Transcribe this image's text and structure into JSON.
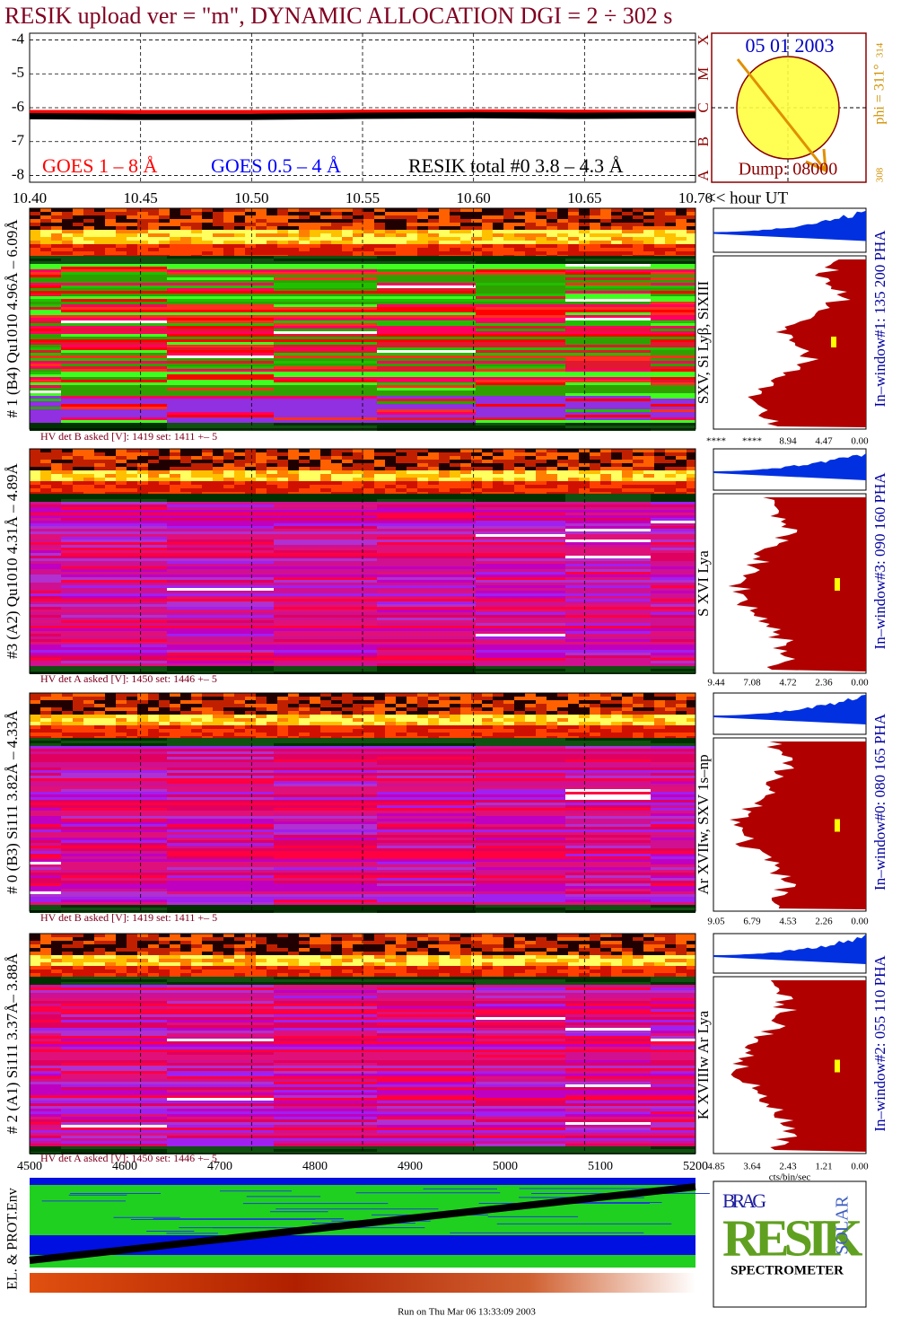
{
  "chart_data": [
    {
      "type": "line",
      "title": "RESIK upload ver = \"m\", DYNAMIC ALLOCATION  DGI =   2 ÷ 302 s",
      "x": [
        10.4,
        10.45,
        10.5,
        10.55,
        10.6,
        10.65,
        10.7
      ],
      "series": [
        {
          "name": "GOES 1 – 8 Å",
          "color": "#ff0000",
          "values": [
            -6.12,
            -6.12,
            -6.12,
            -6.11,
            -6.1,
            -6.11,
            -6.14
          ]
        },
        {
          "name": "GOES 0.5 – 4 Å",
          "color": "#0000ff",
          "values": [
            null,
            null,
            null,
            null,
            null,
            null,
            null
          ]
        },
        {
          "name": "RESIK total #0  3.8 – 4.3 Å",
          "color": "#000000",
          "values": [
            -6.25,
            -6.27,
            -6.27,
            -6.24,
            -6.22,
            -6.24,
            -6.22
          ]
        }
      ],
      "xlim": [
        10.4,
        10.7
      ],
      "xticks": [
        {
          "value": 10.4,
          "label": "10.40"
        },
        {
          "value": 10.45,
          "label": "10.45"
        },
        {
          "value": 10.5,
          "label": "10.50"
        },
        {
          "value": 10.55,
          "label": "10.55"
        },
        {
          "value": 10.6,
          "label": "10.60"
        },
        {
          "value": 10.65,
          "label": "10.65"
        },
        {
          "value": 10.7,
          "label": "10.70"
        }
      ],
      "xlabel": "<< hour UT",
      "ylim": [
        -8.2,
        -3.8
      ],
      "yticks": [
        -8,
        -7,
        -6,
        -5,
        -4
      ],
      "y2lim": [
        -8.2,
        -3.8
      ],
      "y2ticks": [
        {
          "value": -8,
          "label": "A"
        },
        {
          "value": -7,
          "label": "B"
        },
        {
          "value": -6,
          "label": "C"
        },
        {
          "value": -5,
          "label": "M"
        },
        {
          "value": -4,
          "label": "X"
        }
      ],
      "grid": true
    }
  ],
  "sun": {
    "date": "05 01 2003",
    "dump": "Dump: 08000",
    "phi": "phi = 311°",
    "phi_max": "314",
    "phi_min": "308"
  },
  "detectors": [
    {
      "label": "# 1 (B4) Qu1010 4.96Å – 6.09Å",
      "lines": "SXV, Si Lyβ, SiXIII",
      "window": "In–window#1:  135 200 PHA",
      "hv": "HV det B asked [V]:  1419 set:  1411  +–    5",
      "scale": [
        "****",
        "****",
        "8.94",
        "4.47",
        "0.00"
      ]
    },
    {
      "label": "#3 (A2) Qu1010  4.31Å – 4.89Å",
      "lines": "S XVI Lya",
      "window": "In–window#3:  090 160 PHA",
      "hv": "HV det A asked [V]:  1450 set:  1446  +–    5",
      "scale": [
        "9.44",
        "7.08",
        "4.72",
        "2.36",
        "0.00"
      ]
    },
    {
      "label": "# 0 (B3) Si111  3.82Å – 4.33Å",
      "lines": "Ar XVIIw,  SXV 1s–np",
      "window": "In–window#0:  080 165 PHA",
      "hv": "HV det B asked [V]:  1419 set:  1411  +–    5",
      "scale": [
        "9.05",
        "6.79",
        "4.53",
        "2.26",
        "0.00"
      ]
    },
    {
      "label": "# 2 (A1) Si111  3.37Å– 3.88Å",
      "lines": "K XVIIIw  Ar Lya",
      "window": "In–window#2:  055 110 PHA",
      "hv": "HV det A asked [V]:  1450 set:  1446  +–    5",
      "scale": [
        "4.85",
        "3.64",
        "2.43",
        "1.21",
        "0.00"
      ]
    }
  ],
  "scale_unit": "cts/bin/sec",
  "env": {
    "label": "EL. & PROT.Env",
    "xticks": [
      4500,
      4600,
      4700,
      4800,
      4900,
      5000,
      5100,
      5200
    ]
  },
  "logo": {
    "top": "BRAG",
    "main": "RESIK",
    "side": "SOLAR",
    "bottom": "SPECTROMETER"
  },
  "footer": "Run on Thu Mar 06 13:33:09 2003"
}
